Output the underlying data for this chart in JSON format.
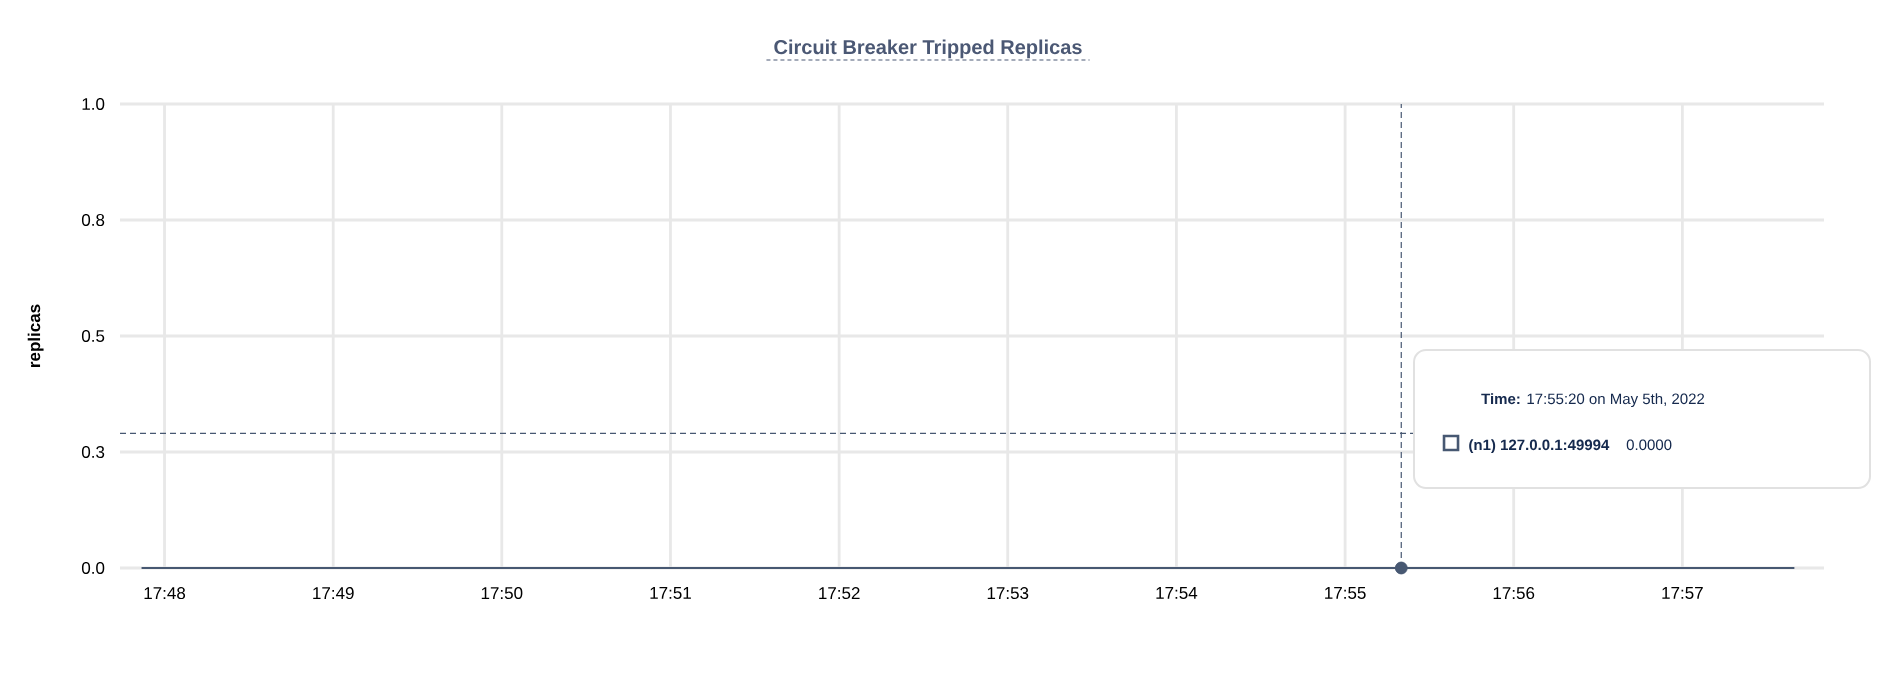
{
  "chart_data": {
    "type": "line",
    "title": "Circuit Breaker Tripped Replicas",
    "ylabel": "replicas",
    "x": [
      17.79773,
      17.96107
    ],
    "series": [
      {
        "name": "(n1) 127.0.0.1:49994",
        "color": "#475872",
        "values": [
          0,
          0
        ],
        "marker": "none"
      },
      {
        "type": "scatter",
        "color": "#475872",
        "x": [
          17.92222
        ],
        "values": [
          0
        ],
        "marker": "circle"
      }
    ],
    "xlim": [
      17.7956,
      17.964
    ],
    "ylim": [
      0,
      1
    ],
    "xticks": [
      {
        "value": 17.8,
        "label": "17:48"
      },
      {
        "value": 17.81667,
        "label": "17:49"
      },
      {
        "value": 17.83333,
        "label": "17:50"
      },
      {
        "value": 17.85,
        "label": "17:51"
      },
      {
        "value": 17.86667,
        "label": "17:52"
      },
      {
        "value": 17.88333,
        "label": "17:53"
      },
      {
        "value": 17.9,
        "label": "17:54"
      },
      {
        "value": 17.91667,
        "label": "17:55"
      },
      {
        "value": 17.93333,
        "label": "17:56"
      },
      {
        "value": 17.95,
        "label": "17:57"
      }
    ],
    "yticks": [
      {
        "value": 0,
        "label": "0.0"
      },
      {
        "value": 0.25,
        "label": "0.3"
      },
      {
        "value": 0.5,
        "label": "0.5"
      },
      {
        "value": 0.75,
        "label": "0.8"
      },
      {
        "value": 1,
        "label": "1.0"
      }
    ],
    "grid": true,
    "legend": "right",
    "ref_lines": [
      {
        "axis": "x",
        "value": 17.92222,
        "color": "#475872",
        "line_style": "dashed"
      },
      {
        "axis": "y",
        "value": 0.29,
        "color": "#475872",
        "line_style": "dashed"
      }
    ],
    "annotations": [
      "**Time:** 17:55:20 on May 5th, 2022",
      "0.0000"
    ]
  }
}
